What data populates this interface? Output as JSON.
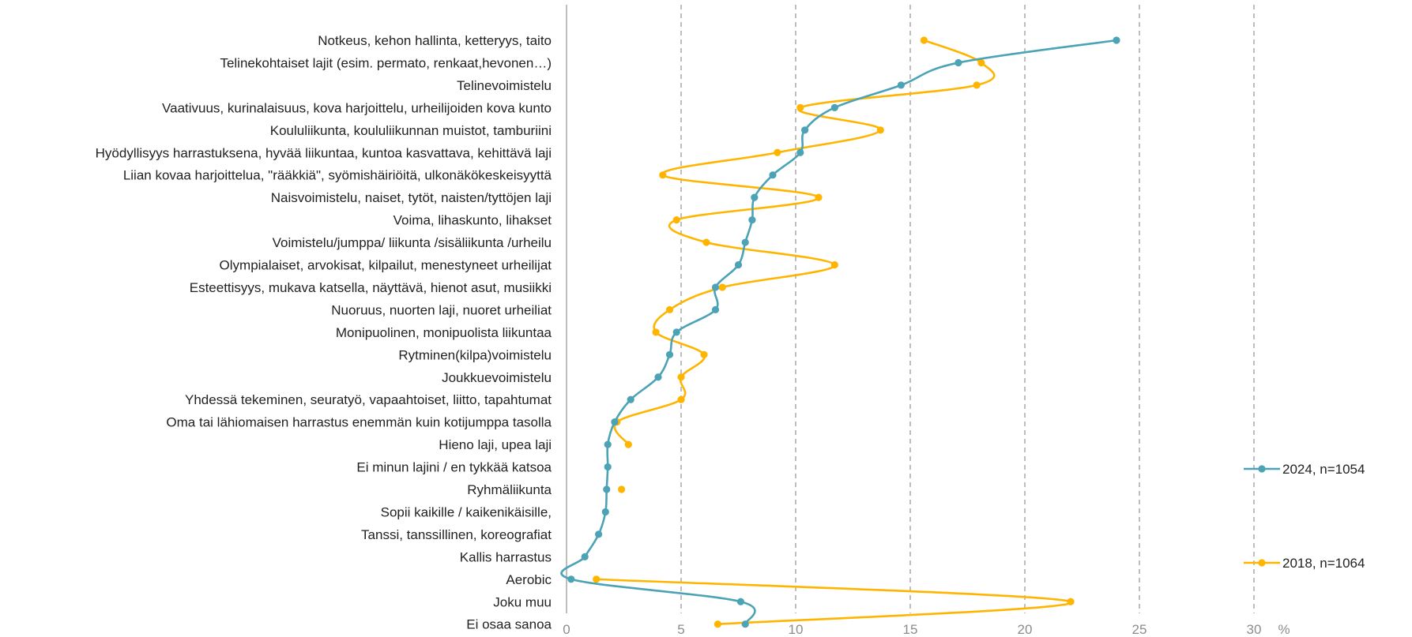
{
  "chart_data": {
    "type": "line",
    "orientation": "horizontal-categories-on-y",
    "categories": [
      "Notkeus, kehon hallinta, ketteryys, taito",
      "Telinekohtaiset lajit (esim. permato, renkaat,hevonen…)",
      "Telinevoimistelu",
      "Vaativuus, kurinalaisuus, kova harjoittelu, urheilijoiden kova kunto",
      "Koululiikunta, koululiikunnan muistot, tamburiini",
      "Hyödyllisyys harrastuksena, hyvää liikuntaa, kuntoa kasvattava, kehittävä laji",
      "Liian kovaa harjoittelua, \"rääkkiä\", syömishäiriöitä, ulkonäkökeskeisyyttä",
      "Naisvoimistelu, naiset, tytöt, naisten/tyttöjen laji",
      "Voima, lihaskunto, lihakset",
      "Voimistelu/jumppa/ liikunta /sisäliikunta /urheilu",
      "Olympialaiset, arvokisat, kilpailut, menestyneet urheilijat",
      "Esteettisyys, mukava katsella, näyttävä, hienot asut, musiikki",
      "Nuoruus, nuorten laji, nuoret urheiliat",
      "Monipuolinen, monipuolista liikuntaa",
      "Rytminen(kilpa)voimistelu",
      "Joukkuevoimistelu",
      "Yhdessä tekeminen, seuratyö, vapaahtoiset, liitto, tapahtumat",
      "Oma tai lähiomaisen harrastus enemmän kuin kotijumppa tasolla",
      "Hieno laji, upea laji",
      "Ei minun lajini / en tykkää katsoa",
      "Ryhmäliikunta",
      "Sopii kaikille / kaikenikäisille,",
      "Tanssi, tanssillinen, koreografiat",
      "Kallis harrastus",
      "Aerobic",
      "Joku muu",
      "Ei osaa sanoa"
    ],
    "series": [
      {
        "name": "2024, n=1054",
        "color": "#4BA3B5",
        "values": [
          24.0,
          17.1,
          14.6,
          11.7,
          10.4,
          10.2,
          9.0,
          8.2,
          8.1,
          7.8,
          7.5,
          6.5,
          6.5,
          4.8,
          4.5,
          4.0,
          2.8,
          2.1,
          1.8,
          1.8,
          1.75,
          1.7,
          1.4,
          0.8,
          0.2,
          7.6,
          7.8
        ]
      },
      {
        "name": "2018, n=1064",
        "color": "#FFB500",
        "values": [
          15.6,
          18.1,
          17.9,
          10.2,
          13.7,
          9.2,
          4.2,
          11.0,
          4.8,
          6.1,
          11.7,
          6.8,
          4.5,
          3.9,
          6.0,
          5.0,
          5.0,
          2.2,
          2.7,
          null,
          2.4,
          null,
          null,
          null,
          1.3,
          22.0,
          6.6
        ]
      }
    ],
    "xlim": [
      0,
      30
    ],
    "xticks": [
      "0",
      "5",
      "10",
      "15",
      "20",
      "25",
      "30"
    ],
    "xunit": "%",
    "grid": "vertical-dashed",
    "legend_position": "right"
  }
}
